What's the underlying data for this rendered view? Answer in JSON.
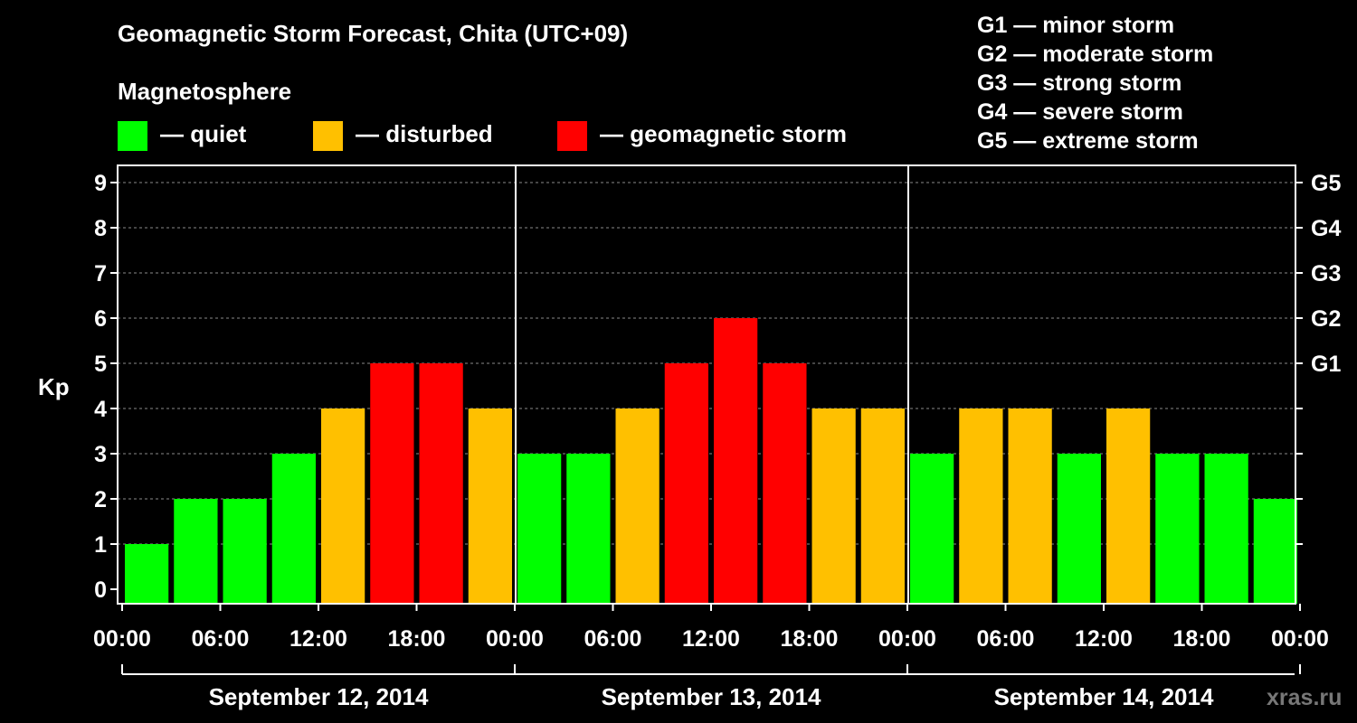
{
  "title": "Geomagnetic Storm Forecast, Chita (UTC+09)",
  "magnetosphere_label": "Magnetosphere",
  "legend": [
    {
      "label": "— quiet",
      "color": "#00ff00"
    },
    {
      "label": "— disturbed",
      "color": "#ffc000"
    },
    {
      "label": "— geomagnetic storm",
      "color": "#ff0000"
    }
  ],
  "storm_scale": [
    "G1 — minor storm",
    "G2 — moderate storm",
    "G3 — strong storm",
    "G4 — severe storm",
    "G5 — extreme storm"
  ],
  "watermark": "xras.ru",
  "chart_data": {
    "type": "bar",
    "title": "Geomagnetic Storm Forecast, Chita (UTC+09)",
    "ylabel": "Kp",
    "xlabel": "",
    "ylim": [
      0,
      9
    ],
    "yticks": [
      "0",
      "1",
      "2",
      "3",
      "4",
      "5",
      "6",
      "7",
      "8",
      "9"
    ],
    "right_axis_labels": [
      {
        "kp": 5,
        "label": "G1"
      },
      {
        "kp": 6,
        "label": "G2"
      },
      {
        "kp": 7,
        "label": "G3"
      },
      {
        "kp": 8,
        "label": "G4"
      },
      {
        "kp": 9,
        "label": "G5"
      }
    ],
    "xtick_labels": [
      "00:00",
      "06:00",
      "12:00",
      "18:00",
      "00:00",
      "06:00",
      "12:00",
      "18:00",
      "00:00",
      "06:00",
      "12:00",
      "18:00",
      "00:00"
    ],
    "days": [
      "September 12, 2014",
      "September 13, 2014",
      "September 14, 2014"
    ],
    "values": [
      1,
      2,
      2,
      3,
      4,
      5,
      5,
      4,
      3,
      3,
      4,
      5,
      6,
      5,
      4,
      4,
      3,
      4,
      4,
      3,
      4,
      3,
      3,
      2
    ],
    "category_colors": [
      "green",
      "green",
      "green",
      "green",
      "yellow",
      "red",
      "red",
      "yellow",
      "green",
      "green",
      "yellow",
      "red",
      "red",
      "red",
      "yellow",
      "yellow",
      "green",
      "yellow",
      "yellow",
      "green",
      "yellow",
      "green",
      "green",
      "green"
    ],
    "colors": {
      "green": "#00ff00",
      "yellow": "#ffc000",
      "red": "#ff0000"
    },
    "grid": true
  }
}
